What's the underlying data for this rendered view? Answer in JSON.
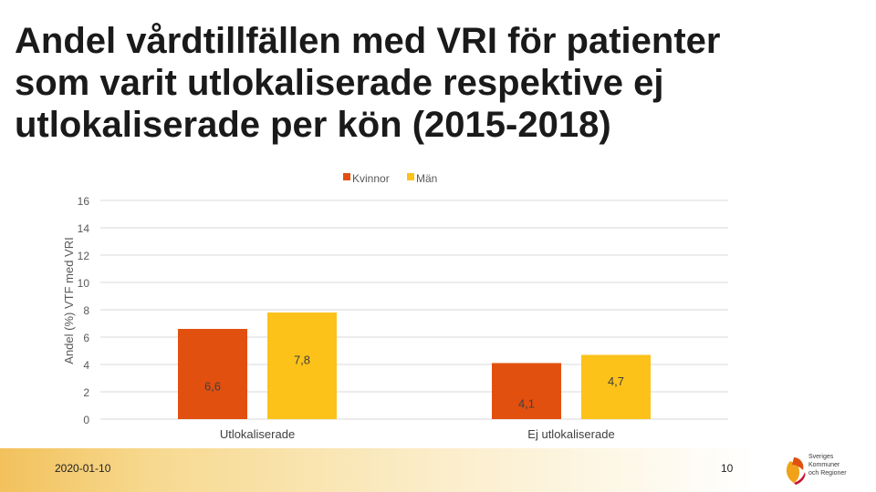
{
  "slide": {
    "title": "Andel vårdtillfällen med VRI för patienter\nsom varit utlokaliserade respektive ej\nutlokaliserade per kön (2015-2018)",
    "footer_date": "2020-01-10",
    "page_number": "10",
    "logo_text": "Sveriges\nKommuner\noch Regioner",
    "logo_icon": "skr-logo-icon"
  },
  "colors": {
    "kvinnor": "#e2500f",
    "man": "#fcc21a",
    "grid": "#d9d9d9",
    "axis_text": "#595959"
  },
  "chart_data": {
    "type": "bar",
    "categories": [
      "Utlokaliserade",
      "Ej utlokaliserade"
    ],
    "series": [
      {
        "name": "Kvinnor",
        "values": [
          6.6,
          4.1
        ],
        "labels": [
          "6,6",
          "4,1"
        ]
      },
      {
        "name": "Män",
        "values": [
          7.8,
          4.7
        ],
        "labels": [
          "7,8",
          "4,7"
        ]
      }
    ],
    "ylabel": "Andel (%) VTF med VRI",
    "ylim": [
      0,
      16
    ],
    "yticks": [
      "0",
      "2",
      "4",
      "6",
      "8",
      "10",
      "12",
      "14",
      "16"
    ],
    "grid": true,
    "legend_position": "top"
  }
}
